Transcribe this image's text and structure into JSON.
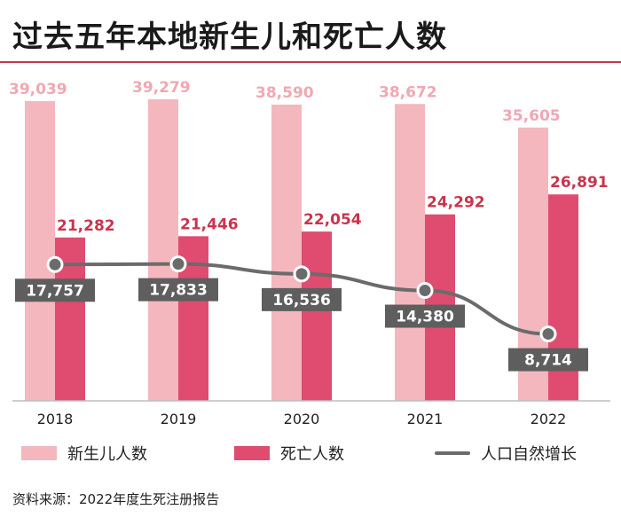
{
  "title": "过去五年本地新生儿和死亡人数",
  "source": "资料来源：2022年度生死注册报告",
  "colors": {
    "births": "#f4b7be",
    "deaths": "#df4c6f",
    "births_label": "#f0a8b2",
    "deaths_label": "#c9344e",
    "line": "#6b6b6b",
    "line_label_bg": "#5e5e5e",
    "accent": "#c9344e"
  },
  "chart_data": {
    "type": "bar",
    "title": "过去五年本地新生儿和死亡人数",
    "categories": [
      "2018",
      "2019",
      "2020",
      "2021",
      "2022"
    ],
    "series": [
      {
        "name": "新生儿人数",
        "type": "bar",
        "values": [
          39039,
          39279,
          38590,
          38672,
          35605
        ],
        "labels": [
          "39,039",
          "39,279",
          "38,590",
          "38,672",
          "35,605"
        ]
      },
      {
        "name": "死亡人数",
        "type": "bar",
        "values": [
          21282,
          21446,
          22054,
          24292,
          26891
        ],
        "labels": [
          "21,282",
          "21,446",
          "22,054",
          "24,292",
          "26,891"
        ]
      },
      {
        "name": "人口自然增长",
        "type": "line",
        "values": [
          17757,
          17833,
          16536,
          14380,
          8714
        ],
        "labels": [
          "17,757",
          "17,833",
          "16,536",
          "14,380",
          "8,714"
        ]
      }
    ],
    "legend": [
      "新生儿人数",
      "死亡人数",
      "人口自然增长"
    ],
    "xlabel": "",
    "ylabel": "",
    "ylim": [
      0,
      40000
    ],
    "grid": false,
    "legend_position": "bottom"
  }
}
